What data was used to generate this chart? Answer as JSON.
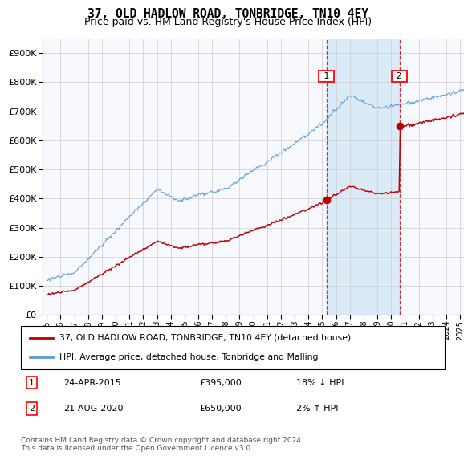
{
  "title": "37, OLD HADLOW ROAD, TONBRIDGE, TN10 4EY",
  "subtitle": "Price paid vs. HM Land Registry's House Price Index (HPI)",
  "ylim": [
    0,
    950000
  ],
  "yticks": [
    0,
    100000,
    200000,
    300000,
    400000,
    500000,
    600000,
    700000,
    800000,
    900000
  ],
  "line_color_hpi": "#5b9bd5",
  "line_color_price": "#c00000",
  "transaction1": {
    "date": "24-APR-2015",
    "price": 395000,
    "hpi_diff": "18% ↓ HPI",
    "label": "1",
    "x": 2015.3
  },
  "transaction2": {
    "date": "21-AUG-2020",
    "price": 650000,
    "hpi_diff": "2% ↑ HPI",
    "label": "2",
    "x": 2020.6
  },
  "legend_line1": "37, OLD HADLOW ROAD, TONBRIDGE, TN10 4EY (detached house)",
  "legend_line2": "HPI: Average price, detached house, Tonbridge and Malling",
  "footer": "Contains HM Land Registry data © Crown copyright and database right 2024.\nThis data is licensed under the Open Government Licence v3.0.",
  "background_color": "#ffffff",
  "shade_color": "#daeaf7"
}
